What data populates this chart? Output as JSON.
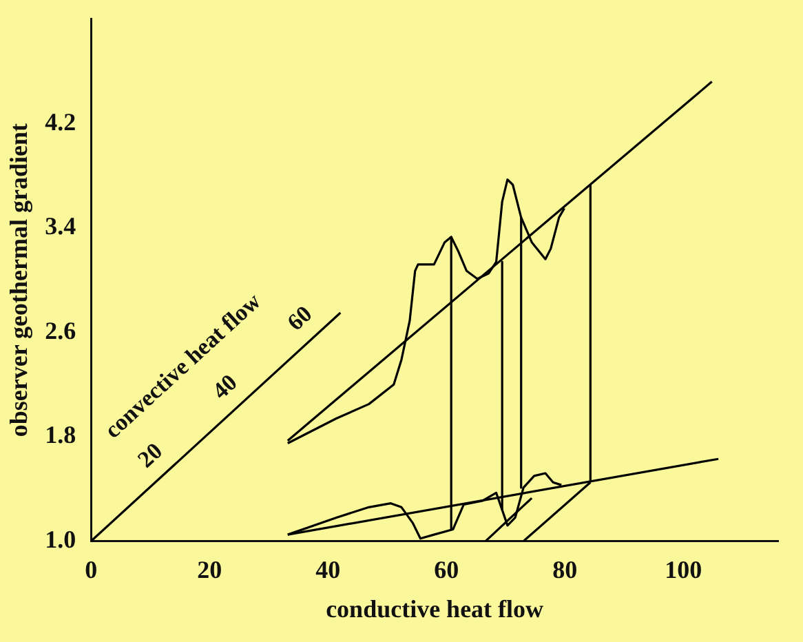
{
  "chart_data": {
    "type": "line",
    "xlabel": "conductive heat flow",
    "ylabel": "observer geothermal gradient",
    "xlim": [
      0,
      116
    ],
    "xticks": [
      0,
      20,
      40,
      60,
      80,
      100
    ],
    "ylim": [
      1.0,
      5.0
    ],
    "yticks": [
      {
        "value": 1.0,
        "label": "1.0"
      },
      1.8,
      2.6,
      3.4,
      4.2
    ],
    "grid": false,
    "legend": false,
    "marker": "none",
    "line_style": "solid",
    "series": [
      {
        "color": "#000000",
        "x": [
          0,
          42.1
        ],
        "values": [
          1.0,
          2.75
        ]
      },
      {
        "color": "#000000",
        "x": [
          33.2,
          104.8
        ],
        "values": [
          1.77,
          4.52
        ]
      },
      {
        "color": "#000000",
        "x": [
          33.2,
          105.9
        ],
        "values": [
          1.05,
          1.63
        ]
      },
      {
        "color": "#000000",
        "x": [
          33.2,
          41.4,
          46.9,
          51.1,
          52.4,
          53.8,
          54.7,
          55.2,
          57.9,
          59.7,
          60.8,
          62.0,
          63.4,
          65.2,
          67.1,
          68.4,
          69.4,
          70.3,
          71.2,
          72.6,
          74.4,
          76.7,
          77.6,
          79.0,
          79.9
        ],
        "values": [
          1.75,
          1.94,
          2.05,
          2.2,
          2.39,
          2.69,
          3.07,
          3.12,
          3.12,
          3.29,
          3.33,
          3.22,
          3.07,
          3.01,
          3.05,
          3.14,
          3.6,
          3.77,
          3.73,
          3.48,
          3.29,
          3.16,
          3.24,
          3.48,
          3.55
        ]
      },
      {
        "color": "#000000",
        "x": [
          33.2,
          41.4,
          46.9,
          50.6,
          52.4,
          54.3,
          55.6,
          57.9,
          61.1,
          62.9,
          66.1,
          68.4,
          69.4,
          70.3,
          71.6,
          73.0,
          74.8,
          76.7,
          78.0,
          79.4
        ],
        "values": [
          1.05,
          1.18,
          1.26,
          1.29,
          1.26,
          1.14,
          1.02,
          1.05,
          1.09,
          1.28,
          1.31,
          1.37,
          1.24,
          1.12,
          1.18,
          1.41,
          1.5,
          1.52,
          1.45,
          1.43
        ]
      },
      {
        "color": "#000000",
        "x": [
          60.8,
          60.8
        ],
        "values": [
          3.33,
          1.09
        ]
      },
      {
        "color": "#000000",
        "x": [
          69.4,
          69.4
        ],
        "values": [
          3.14,
          1.24
        ]
      },
      {
        "color": "#000000",
        "x": [
          72.6,
          72.6
        ],
        "values": [
          3.48,
          1.41
        ]
      },
      {
        "color": "#000000",
        "x": [
          84.3,
          84.3
        ],
        "values": [
          3.73,
          1.46
        ]
      },
      {
        "color": "#000000",
        "x": [
          66.6,
          74.4
        ],
        "values": [
          1.0,
          1.33
        ]
      },
      {
        "color": "#000000",
        "x": [
          73.0,
          84.3
        ],
        "values": [
          1.0,
          1.45
        ]
      }
    ],
    "annotations": [
      "convective heat flow",
      "20",
      "40",
      "60"
    ]
  }
}
